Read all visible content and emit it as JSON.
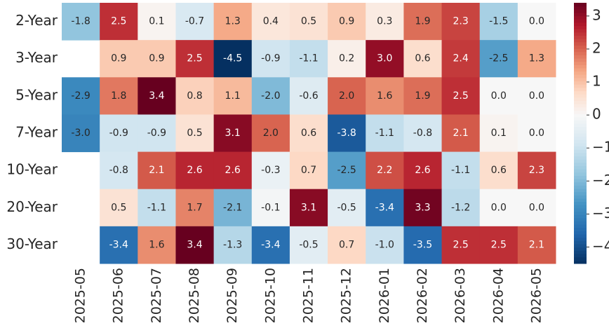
{
  "chart_data": {
    "type": "heatmap",
    "x": [
      "2025-05",
      "2025-06",
      "2025-07",
      "2025-08",
      "2025-09",
      "2025-10",
      "2025-11",
      "2025-12",
      "2026-01",
      "2026-02",
      "2026-03",
      "2026-04",
      "2026-05"
    ],
    "y": [
      "2-Year",
      "3-Year",
      "5-Year",
      "7-Year",
      "10-Year",
      "20-Year",
      "30-Year"
    ],
    "values": [
      [
        -1.8,
        2.5,
        0.1,
        -0.7,
        1.3,
        0.4,
        0.5,
        0.9,
        0.3,
        1.9,
        2.3,
        -1.5,
        0.0
      ],
      [
        null,
        0.9,
        0.9,
        2.5,
        -4.5,
        -0.9,
        -1.1,
        0.2,
        3.0,
        0.6,
        2.4,
        -2.5,
        1.3
      ],
      [
        -2.9,
        1.8,
        3.4,
        0.8,
        1.1,
        -2.0,
        -0.6,
        2.0,
        1.6,
        1.9,
        2.5,
        0.0,
        0.0
      ],
      [
        -3.0,
        -0.9,
        -0.9,
        0.5,
        3.1,
        2.0,
        0.6,
        -3.8,
        -1.1,
        -0.8,
        2.1,
        0.1,
        0.0
      ],
      [
        null,
        -0.8,
        2.1,
        2.6,
        2.6,
        -0.3,
        0.7,
        -2.5,
        2.2,
        2.6,
        -1.1,
        0.6,
        2.3
      ],
      [
        null,
        0.5,
        -1.1,
        1.7,
        -2.1,
        -0.1,
        3.1,
        -0.5,
        -3.4,
        3.3,
        -1.2,
        0.0,
        0.0
      ],
      [
        null,
        -3.4,
        1.6,
        3.4,
        -1.3,
        -3.4,
        -0.5,
        0.7,
        -1.0,
        -3.5,
        2.5,
        2.5,
        2.1
      ]
    ],
    "value_labels": [
      [
        "-1.8",
        "2.5",
        "0.1",
        "-0.7",
        "1.3",
        "0.4",
        "0.5",
        "0.9",
        "0.3",
        "1.9",
        "2.3",
        "-1.5",
        "0.0"
      ],
      [
        null,
        "0.9",
        "0.9",
        "2.5",
        "-4.5",
        "-0.9",
        "-1.1",
        "0.2",
        "3.0",
        "0.6",
        "2.4",
        "-2.5",
        "1.3"
      ],
      [
        "-2.9",
        "1.8",
        "3.4",
        "0.8",
        "1.1",
        "-2.0",
        "-0.6",
        "2.0",
        "1.6",
        "1.9",
        "2.5",
        "0.0",
        "0.0"
      ],
      [
        "-3.0",
        "-0.9",
        "-0.9",
        "0.5",
        "3.1",
        "2.0",
        "0.6",
        "-3.8",
        "-1.1",
        "-0.8",
        "2.1",
        "0.1",
        "0.0"
      ],
      [
        null,
        "-0.8",
        "2.1",
        "2.6",
        "2.6",
        "-0.3",
        "0.7",
        "-2.5",
        "2.2",
        "2.6",
        "-1.1",
        "0.6",
        "2.3"
      ],
      [
        null,
        "0.5",
        "-1.1",
        "1.7",
        "-2.1",
        "-0.1",
        "3.1",
        "-0.5",
        "-3.4",
        "3.3",
        "-1.2",
        "0.0",
        "0.0"
      ],
      [
        null,
        "-3.4",
        "1.6",
        "3.4",
        "-1.3",
        "-3.4",
        "-0.5",
        "0.7",
        "-1.0",
        "-3.5",
        "2.5",
        "2.5",
        "2.1"
      ]
    ],
    "clim": [
      -4.5,
      3.4
    ],
    "center": 0,
    "colormap": [
      "#053061",
      "#2166ac",
      "#4393c3",
      "#92c5de",
      "#d1e5f0",
      "#f7f7f7",
      "#fddbc7",
      "#f4a582",
      "#d6604d",
      "#b2182b",
      "#67001f"
    ],
    "cticks": [
      {
        "value": -4,
        "label": "−4"
      },
      {
        "value": -3,
        "label": "−3"
      },
      {
        "value": -2,
        "label": "−2"
      },
      {
        "value": -1,
        "label": "−1"
      },
      0,
      1,
      2,
      3
    ]
  }
}
